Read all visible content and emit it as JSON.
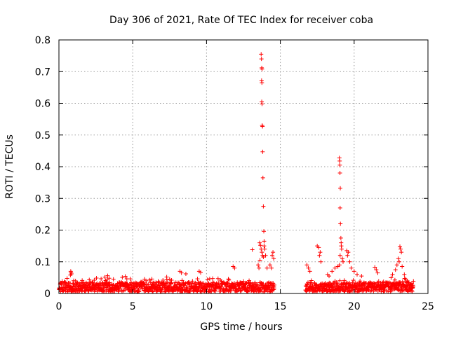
{
  "chart_data": {
    "type": "scatter",
    "title": "Day 306 of 2021, Rate Of TEC Index for receiver coba",
    "xlabel": "GPS time / hours",
    "ylabel": "ROTI / TECUs",
    "xlim": [
      0,
      25
    ],
    "ylim": [
      0,
      0.8
    ],
    "xticks": [
      0,
      5,
      10,
      15,
      20,
      25
    ],
    "yticks": [
      0,
      0.1,
      0.2,
      0.3,
      0.4,
      0.5,
      0.6,
      0.7,
      0.8
    ],
    "xtick_labels": [
      "0",
      "5",
      "10",
      "15",
      "20",
      "25"
    ],
    "ytick_labels": [
      "0",
      "0.1",
      "0.2",
      "0.3",
      "0.4",
      "0.5",
      "0.6",
      "0.7",
      "0.8"
    ],
    "grid": true,
    "marker": "+",
    "color": "#ff0000",
    "coverage": [
      [
        0.0,
        14.6
      ],
      [
        16.7,
        24.0
      ]
    ],
    "baseline_range": [
      0.005,
      0.035
    ],
    "series": [
      {
        "name": "ROTI",
        "points": [
          [
            0.8,
            0.07
          ],
          [
            0.82,
            0.066
          ],
          [
            0.85,
            0.062
          ],
          [
            0.78,
            0.058
          ],
          [
            3.3,
            0.056
          ],
          [
            3.4,
            0.048
          ],
          [
            4.5,
            0.054
          ],
          [
            4.6,
            0.046
          ],
          [
            5.8,
            0.045
          ],
          [
            5.9,
            0.04
          ],
          [
            7.3,
            0.052
          ],
          [
            7.5,
            0.045
          ],
          [
            8.2,
            0.07
          ],
          [
            8.3,
            0.065
          ],
          [
            8.6,
            0.062
          ],
          [
            9.5,
            0.07
          ],
          [
            9.6,
            0.066
          ],
          [
            11.8,
            0.085
          ],
          [
            11.9,
            0.08
          ],
          [
            13.1,
            0.138
          ],
          [
            13.7,
            0.755
          ],
          [
            13.72,
            0.74
          ],
          [
            13.74,
            0.712
          ],
          [
            13.76,
            0.708
          ],
          [
            13.73,
            0.672
          ],
          [
            13.75,
            0.665
          ],
          [
            13.74,
            0.605
          ],
          [
            13.76,
            0.598
          ],
          [
            13.77,
            0.53
          ],
          [
            13.79,
            0.527
          ],
          [
            13.8,
            0.447
          ],
          [
            13.82,
            0.365
          ],
          [
            13.85,
            0.275
          ],
          [
            13.88,
            0.196
          ],
          [
            13.9,
            0.165
          ],
          [
            13.9,
            0.15
          ],
          [
            13.6,
            0.16
          ],
          [
            13.65,
            0.152
          ],
          [
            13.7,
            0.14
          ],
          [
            13.75,
            0.13
          ],
          [
            13.8,
            0.12
          ],
          [
            13.85,
            0.115
          ],
          [
            13.95,
            0.14
          ],
          [
            14.0,
            0.12
          ],
          [
            13.5,
            0.09
          ],
          [
            13.55,
            0.08
          ],
          [
            13.62,
            0.105
          ],
          [
            14.1,
            0.08
          ],
          [
            14.3,
            0.09
          ],
          [
            14.4,
            0.08
          ],
          [
            14.45,
            0.12
          ],
          [
            14.5,
            0.13
          ],
          [
            14.55,
            0.11
          ],
          [
            16.8,
            0.09
          ],
          [
            16.9,
            0.08
          ],
          [
            17.0,
            0.07
          ],
          [
            17.5,
            0.15
          ],
          [
            17.6,
            0.145
          ],
          [
            17.7,
            0.13
          ],
          [
            17.65,
            0.12
          ],
          [
            17.75,
            0.1
          ],
          [
            18.2,
            0.06
          ],
          [
            18.3,
            0.055
          ],
          [
            18.5,
            0.07
          ],
          [
            18.7,
            0.08
          ],
          [
            19.0,
            0.428
          ],
          [
            19.02,
            0.418
          ],
          [
            19.03,
            0.405
          ],
          [
            19.04,
            0.38
          ],
          [
            19.06,
            0.332
          ],
          [
            19.05,
            0.27
          ],
          [
            19.07,
            0.22
          ],
          [
            19.1,
            0.175
          ],
          [
            19.12,
            0.16
          ],
          [
            19.13,
            0.15
          ],
          [
            19.15,
            0.14
          ],
          [
            19.05,
            0.12
          ],
          [
            19.2,
            0.11
          ],
          [
            19.25,
            0.1
          ],
          [
            19.0,
            0.09
          ],
          [
            18.9,
            0.085
          ],
          [
            19.5,
            0.135
          ],
          [
            19.6,
            0.13
          ],
          [
            19.55,
            0.12
          ],
          [
            19.7,
            0.1
          ],
          [
            19.8,
            0.08
          ],
          [
            20.0,
            0.07
          ],
          [
            20.2,
            0.06
          ],
          [
            20.5,
            0.055
          ],
          [
            21.4,
            0.083
          ],
          [
            21.5,
            0.075
          ],
          [
            21.6,
            0.065
          ],
          [
            22.6,
            0.06
          ],
          [
            22.8,
            0.075
          ],
          [
            22.9,
            0.09
          ],
          [
            23.0,
            0.11
          ],
          [
            23.1,
            0.148
          ],
          [
            23.15,
            0.14
          ],
          [
            23.2,
            0.13
          ],
          [
            23.05,
            0.1
          ],
          [
            23.25,
            0.085
          ],
          [
            23.4,
            0.06
          ],
          [
            23.6,
            0.04
          ]
        ]
      }
    ]
  }
}
